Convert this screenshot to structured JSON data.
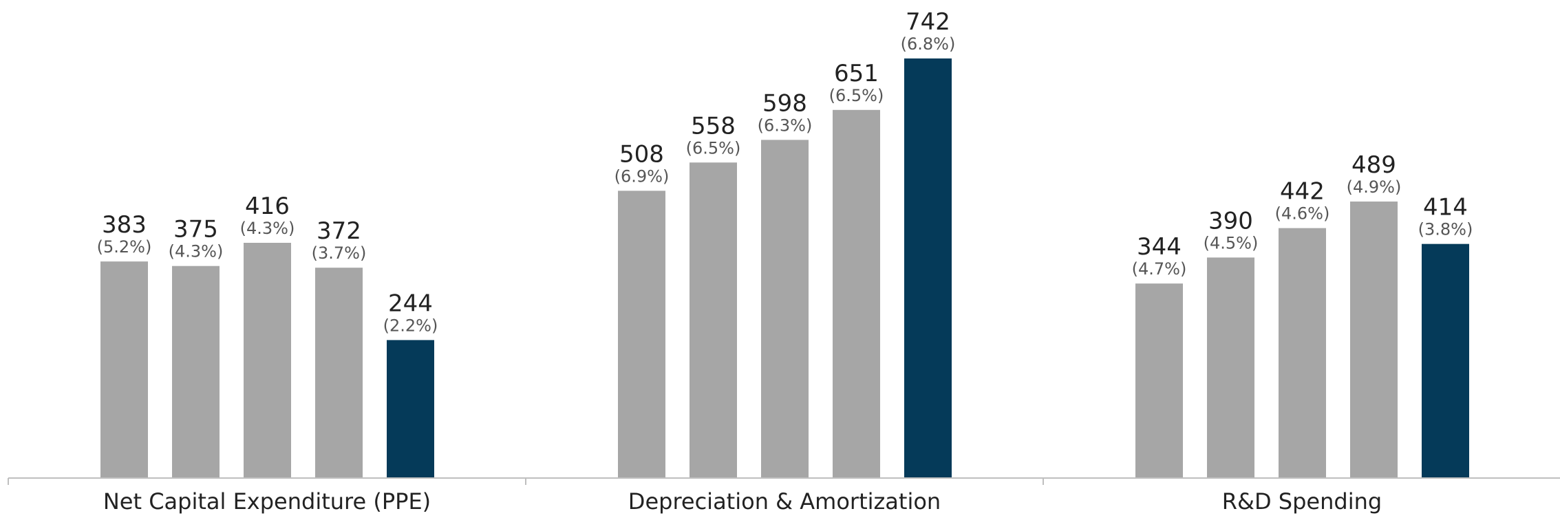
{
  "chart_data": {
    "type": "bar",
    "categories": [
      "Net Capital Expenditure (PPE)",
      "Depreciation & Amortization",
      "R&D Spending"
    ],
    "series": [
      {
        "values": [
          383,
          508,
          344
        ],
        "labels": [
          "(5.2%)",
          "(6.9%)",
          "(4.7%)"
        ]
      },
      {
        "values": [
          375,
          558,
          390
        ],
        "labels": [
          "(4.3%)",
          "(6.5%)",
          "(4.5%)"
        ]
      },
      {
        "values": [
          416,
          598,
          442
        ],
        "labels": [
          "(4.3%)",
          "(6.3%)",
          "(4.6%)"
        ]
      },
      {
        "values": [
          372,
          651,
          489
        ],
        "labels": [
          "(3.7%)",
          "(6.5%)",
          "(4.9%)"
        ]
      },
      {
        "values": [
          244,
          742,
          414
        ],
        "labels": [
          "(2.2%)",
          "(6.8%)",
          "(3.8%)"
        ],
        "highlight": true
      }
    ],
    "ylim": [
      0,
      742
    ],
    "grid": false,
    "legend": "none",
    "colors": {
      "bar": "#a6a6a6",
      "highlight": "#053a59",
      "axis": "#bfbfbf"
    }
  }
}
